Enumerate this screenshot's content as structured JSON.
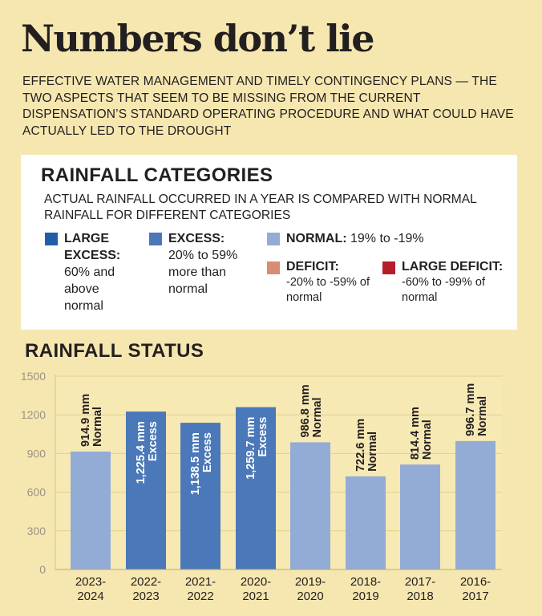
{
  "headline": "Numbers don’t lie",
  "subhead": "EFFECTIVE WATER MANAGEMENT AND TIMELY CONTINGENCY PLANS — THE TWO ASPECTS THAT SEEM TO BE MISSING FROM THE CURRENT DISPENSATION’S STANDARD OPERATING PROCEDURE AND WHAT COULD HAVE ACTUALLY LED TO THE DROUGHT",
  "categories_panel": {
    "title": "RAINFALL CATEGORIES",
    "description": "ACTUAL RAINFALL OCCURRED IN A YEAR IS COMPARED WITH NORMAL RAINFALL FOR DIFFERENT CATEGORIES",
    "items": [
      {
        "name": "LARGE EXCESS:",
        "range": "60% and above normal",
        "color": "#1f5fa8"
      },
      {
        "name": "EXCESS:",
        "range": "20% to 59% more than normal",
        "color": "#4a78b8"
      },
      {
        "name": "NORMAL:",
        "range": "19% to -19%",
        "color": "#93acd6"
      },
      {
        "name": "DEFICIT:",
        "range": "-20% to -59% of normal",
        "color": "#d98c74"
      },
      {
        "name": "LARGE DEFICIT:",
        "range": "-60% to -99% of normal",
        "color": "#b71c2b"
      }
    ]
  },
  "chart_data": {
    "type": "bar",
    "title": "RAINFALL STATUS",
    "categories": [
      "2023-\n2024",
      "2022-\n2023",
      "2021-\n2022",
      "2020-\n2021",
      "2019-\n2020",
      "2018-\n2019",
      "2017-\n2018",
      "2016-\n2017"
    ],
    "values": [
      914.9,
      1225.4,
      1138.5,
      1259.7,
      986.8,
      722.6,
      814.4,
      996.7
    ],
    "value_labels": [
      "914.9 mm",
      "1,225.4 mm",
      "1,138.5 mm",
      "1,259.7 mm",
      "986.8 mm",
      "722.6 mm",
      "814.4 mm",
      "996.7 mm"
    ],
    "status": [
      "Normal",
      "Excess",
      "Excess",
      "Excess",
      "Normal",
      "Normal",
      "Normal",
      "Normal"
    ],
    "status_colors": {
      "Normal": "#93acd6",
      "Excess": "#4a78b8"
    },
    "yticks": [
      0,
      300,
      600,
      900,
      1200,
      1500
    ],
    "ylim": [
      0,
      1500
    ],
    "xlabel": "",
    "ylabel": "",
    "grid": true
  }
}
